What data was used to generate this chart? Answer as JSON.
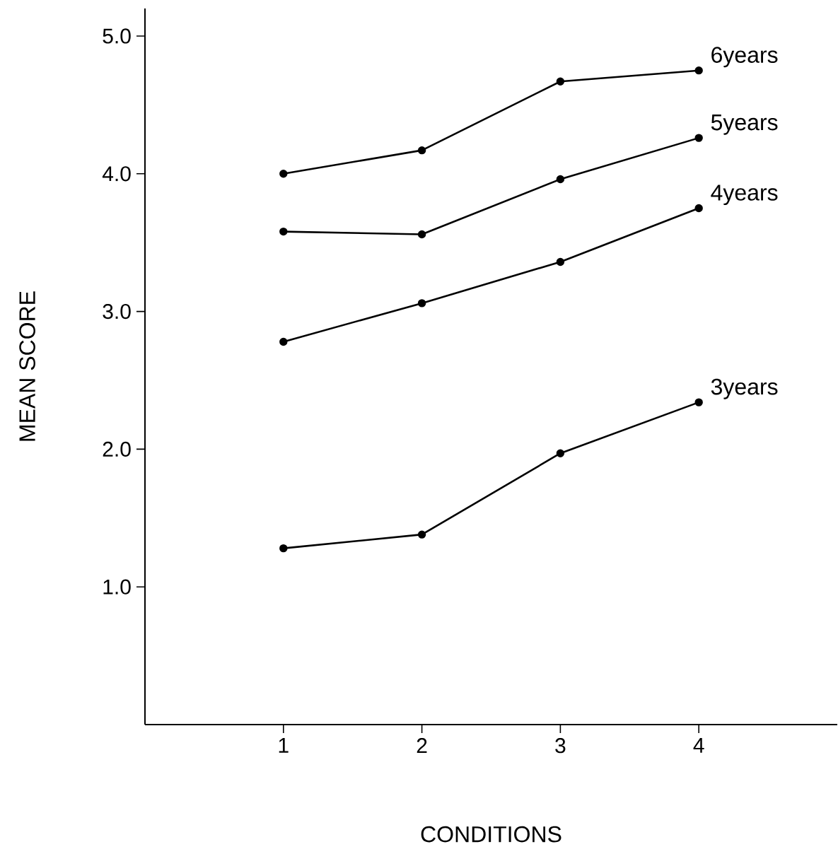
{
  "chart_data": {
    "type": "line",
    "xlabel": "CONDITIONS",
    "ylabel": "MEAN SCORE",
    "x": [
      1,
      2,
      3,
      4
    ],
    "xlim": [
      0,
      5
    ],
    "ylim": [
      0,
      5.2
    ],
    "xticks": [
      1,
      2,
      3,
      4
    ],
    "yticks": [
      {
        "value": 1,
        "label": "1.0"
      },
      {
        "value": 2,
        "label": "2.0"
      },
      {
        "value": 3,
        "label": "3.0"
      },
      {
        "value": 4,
        "label": "4.0"
      },
      {
        "value": 5,
        "label": "5.0"
      }
    ],
    "grid": false,
    "legend": false,
    "marker": "circle",
    "line_style": "solid",
    "series": [
      {
        "name": "6years",
        "color": "#000000",
        "values": [
          4.0,
          4.17,
          4.67,
          4.75
        ]
      },
      {
        "name": "5years",
        "color": "#000000",
        "values": [
          3.58,
          3.56,
          3.96,
          4.26
        ]
      },
      {
        "name": "4years",
        "color": "#000000",
        "values": [
          2.78,
          3.06,
          3.36,
          3.75
        ]
      },
      {
        "name": "3years",
        "color": "#000000",
        "values": [
          1.28,
          1.38,
          1.97,
          2.34
        ]
      }
    ]
  }
}
